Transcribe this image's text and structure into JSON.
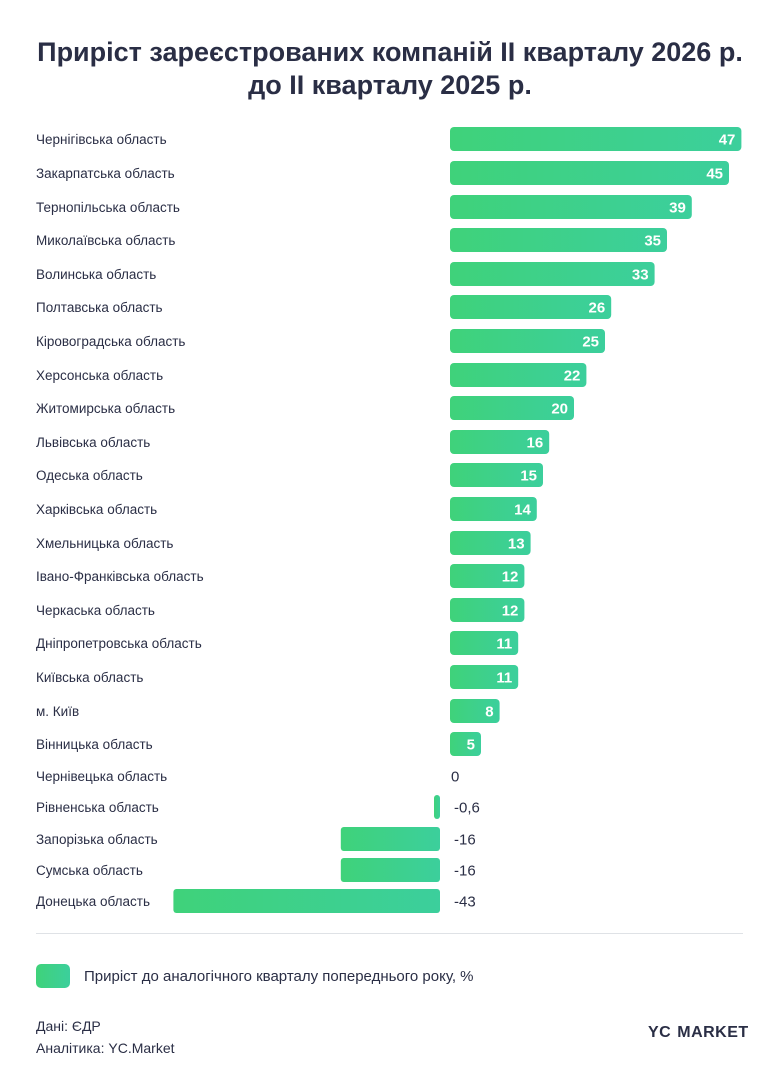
{
  "header": {
    "title_line1": "Приріст зареєстрованих компаній ІІ кварталу 2026 р.",
    "title_line2": "до ІІ кварталу 2025 р."
  },
  "colors": {
    "bar_start": "#3fd27a",
    "bar_end": "#3ccf9c",
    "text": "#2a2e45"
  },
  "chart_data": {
    "type": "bar",
    "orientation": "horizontal",
    "title": "Приріст зареєстрованих компаній ІІ кварталу 2026 р. до ІІ кварталу 2025 р.",
    "categories": [
      "Чернігівська область",
      "Закарпатська область",
      "Тернопільська область",
      "Миколаївська область",
      "Волинська область",
      "Полтавська область",
      "Кіровоградська область",
      "Херсонська область",
      "Житомирська область",
      "Львівська область",
      "Одеська область",
      "Харківська область",
      "Хмельницька область",
      "Івано-Франківська область",
      "Черкаська область",
      "Дніпропетровська область",
      "Київська область",
      "м. Київ",
      "Вінницька область",
      "Чернівецька область",
      "Рівненська область",
      "Запорізька область",
      "Сумська область",
      "Донецька область"
    ],
    "values": [
      47,
      45,
      39,
      35,
      33,
      26,
      25,
      22,
      20,
      16,
      15,
      14,
      13,
      12,
      12,
      11,
      11,
      8,
      5,
      0,
      -0.6,
      -16,
      -16,
      -43
    ],
    "value_labels": [
      "47",
      "45",
      "39",
      "35",
      "33",
      "26",
      "25",
      "22",
      "20",
      "16",
      "15",
      "14",
      "13",
      "12",
      "12",
      "11",
      "11",
      "8",
      "5",
      "0",
      "-0,6",
      "-16",
      "-16",
      "-43"
    ],
    "series": [
      {
        "name": "Приріст до аналогічного кварталу попереднього року, %"
      }
    ],
    "legend_position": "bottom-left",
    "grid": false
  },
  "legend": {
    "label": "Приріст до аналогічного кварталу попереднього року, %"
  },
  "footer": {
    "source_line1": "Дані: ЄДР",
    "source_line2": "Аналітика: YC.Market",
    "logo_left": "YC",
    "logo_right": "MARKET"
  }
}
